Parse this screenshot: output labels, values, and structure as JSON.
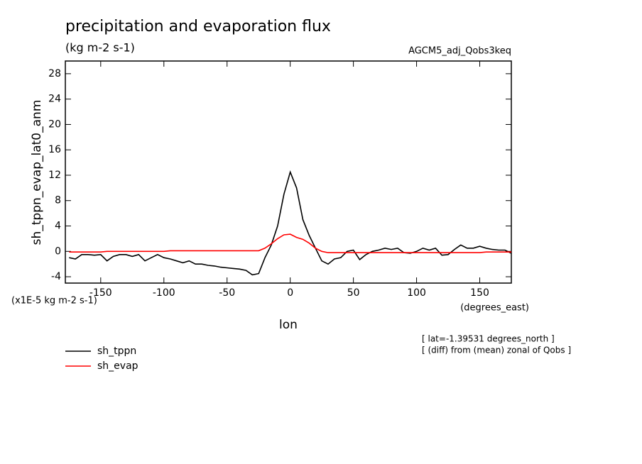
{
  "chart_data": {
    "type": "line",
    "title": "precipitation and evaporation flux",
    "subtitle": "(kg m-2 s-1)",
    "dataset": "AGCM5_adj_Qobs3keq",
    "y_label": "sh_tppn_evap_lat0_anm",
    "y_units": "(x1E-5 kg m-2 s-1)",
    "x_units": "(degrees_east)",
    "x_label": "lon",
    "annotations": [
      "[ lat=-1.39531 degrees_north ]",
      "[ (diff) from (mean) zonal of Qobs ]"
    ],
    "x": [
      -175,
      -170,
      -165,
      -160,
      -155,
      -150,
      -145,
      -140,
      -135,
      -130,
      -125,
      -120,
      -115,
      -110,
      -105,
      -100,
      -95,
      -90,
      -85,
      -80,
      -75,
      -70,
      -65,
      -60,
      -55,
      -50,
      -45,
      -40,
      -35,
      -30,
      -25,
      -20,
      -15,
      -10,
      -5,
      0,
      5,
      10,
      15,
      20,
      25,
      30,
      35,
      40,
      45,
      50,
      55,
      60,
      65,
      70,
      75,
      80,
      85,
      90,
      95,
      100,
      105,
      110,
      115,
      120,
      125,
      130,
      135,
      140,
      145,
      150,
      155,
      160,
      165,
      170,
      175
    ],
    "series": [
      {
        "name": "sh_tppn",
        "color": "#000000",
        "values": [
          -1,
          -1.2,
          -0.5,
          -0.5,
          -0.6,
          -0.5,
          -1.5,
          -0.8,
          -0.5,
          -0.5,
          -0.8,
          -0.5,
          -1.5,
          -1,
          -0.5,
          -1,
          -1.2,
          -1.5,
          -1.8,
          -1.5,
          -2,
          -2,
          -2.2,
          -2.3,
          -2.5,
          -2.6,
          -2.7,
          -2.8,
          -3,
          -3.7,
          -3.5,
          -1,
          1,
          4,
          9,
          12.5,
          10,
          5,
          2.5,
          0.5,
          -1.5,
          -2,
          -1.2,
          -1,
          0,
          0.2,
          -1.3,
          -0.5,
          0,
          0.2,
          0.5,
          0.3,
          0.5,
          -0.2,
          -0.3,
          0,
          0.5,
          0.2,
          0.5,
          -0.6,
          -0.5,
          0.3,
          1,
          0.5,
          0.5,
          0.8,
          0.5,
          0.3,
          0.2,
          0.2,
          -0.3
        ]
      },
      {
        "name": "sh_evap",
        "color": "#ff0000",
        "values": [
          -0.1,
          -0.1,
          -0.1,
          -0.1,
          -0.1,
          -0.1,
          0,
          0,
          0,
          0,
          0,
          0,
          0,
          0,
          0,
          0,
          0.1,
          0.1,
          0.1,
          0.1,
          0.1,
          0.1,
          0.1,
          0.1,
          0.1,
          0.1,
          0.1,
          0.1,
          0.1,
          0.1,
          0.1,
          0.5,
          1.2,
          2,
          2.6,
          2.7,
          2.2,
          1.9,
          1.3,
          0.5,
          0,
          -0.2,
          -0.2,
          -0.2,
          -0.2,
          -0.2,
          -0.2,
          -0.2,
          -0.2,
          -0.2,
          -0.2,
          -0.2,
          -0.2,
          -0.2,
          -0.2,
          -0.2,
          -0.2,
          -0.2,
          -0.2,
          -0.2,
          -0.2,
          -0.2,
          -0.2,
          -0.2,
          -0.2,
          -0.2,
          -0.1,
          -0.1,
          -0.1,
          -0.1,
          -0.1
        ]
      }
    ],
    "xlim": [
      -178,
      175
    ],
    "ylim": [
      -5,
      30
    ],
    "xticks": [
      -150,
      -100,
      -50,
      0,
      50,
      100,
      150
    ],
    "yticks": [
      -4,
      0,
      4,
      8,
      12,
      16,
      20,
      24,
      28
    ]
  }
}
